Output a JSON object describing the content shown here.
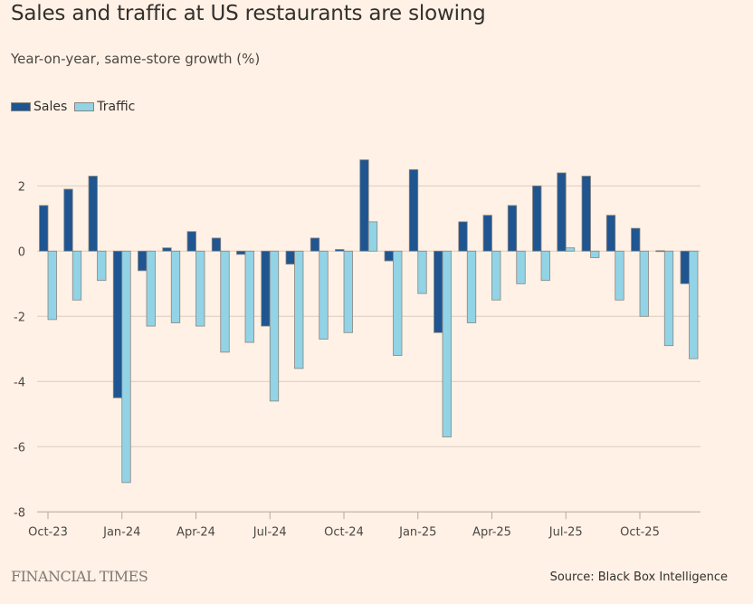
{
  "header": {
    "title": "Sales and traffic at US restaurants are slowing",
    "subtitle": "Year-on-year, same-store growth (%)"
  },
  "footer": {
    "brand": "FINANCIAL TIMES",
    "source": "Source: Black Box Intelligence"
  },
  "colors": {
    "background": "#fff1e5",
    "sales": "#1f5590",
    "traffic": "#92d3e6",
    "bar_border": "#8a8580",
    "gridline": "#d9cdc2",
    "axis": "#b3aaa2"
  },
  "chart_data": {
    "type": "bar",
    "title": "Sales and traffic at US restaurants are slowing",
    "subtitle": "Year-on-year, same-store growth (%)",
    "xlabel": "",
    "ylabel": "",
    "ylim": [
      -8,
      3
    ],
    "yticks": [
      2,
      0,
      -2,
      -4,
      -6,
      -8
    ],
    "ytick_labels": [
      "2",
      "0",
      "-2",
      "-4",
      "-6",
      "-8"
    ],
    "grid": true,
    "legend": "top-left",
    "categories": [
      "Oct-23",
      "Nov-23",
      "Dec-23",
      "Jan-24",
      "Feb-24",
      "Mar-24",
      "Apr-24",
      "May-24",
      "Jun-24",
      "Jul-24",
      "Aug-24",
      "Sep-24",
      "Oct-24",
      "Nov-24",
      "Dec-24",
      "Jan-25",
      "Feb-25",
      "Mar-25",
      "Apr-25",
      "May-25",
      "Jun-25",
      "Jul-25",
      "Aug-25",
      "Sep-25",
      "Oct-25",
      "Nov-25",
      "Dec-25"
    ],
    "xtick_labels": [
      "Oct-23",
      "Jan-24",
      "Apr-24",
      "Jul-24",
      "Oct-24",
      "Jan-25",
      "Apr-25",
      "Jul-25",
      "Oct-25"
    ],
    "xtick_indices": [
      0,
      3,
      6,
      9,
      12,
      15,
      18,
      21,
      24
    ],
    "series": [
      {
        "name": "Sales",
        "values": [
          1.4,
          1.9,
          2.3,
          -4.5,
          -0.6,
          0.1,
          0.6,
          0.4,
          -0.1,
          -2.3,
          -0.4,
          0.4,
          0.05,
          2.8,
          -0.3,
          2.5,
          -2.5,
          0.9,
          1.1,
          1.4,
          2.0,
          2.4,
          2.3,
          1.1,
          0.7,
          0.0,
          -1.0
        ]
      },
      {
        "name": "Traffic",
        "values": [
          -2.1,
          -1.5,
          -0.9,
          -7.1,
          -2.3,
          -2.2,
          -2.3,
          -3.1,
          -2.8,
          -4.6,
          -3.6,
          -2.7,
          -2.5,
          0.9,
          -3.2,
          -1.3,
          -5.7,
          -2.2,
          -1.5,
          -1.0,
          -0.9,
          0.1,
          -0.2,
          -1.5,
          -2.0,
          -2.9,
          -3.3
        ]
      }
    ]
  }
}
